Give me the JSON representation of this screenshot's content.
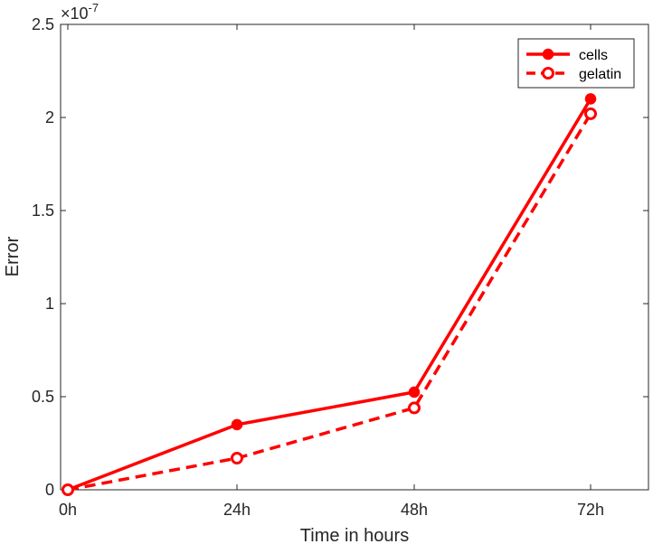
{
  "chart_data": {
    "type": "line",
    "x": [
      "0h",
      "24h",
      "48h",
      "72h"
    ],
    "xlabel": "Time in hours",
    "ylabel": "Error",
    "exponent_label": "×10",
    "exponent_power": "-7",
    "yticks": [
      "0",
      "0.5",
      "1",
      "1.5",
      "2",
      "2.5"
    ],
    "ylim": [
      0,
      2.5
    ],
    "grid": false,
    "legend_position": "top-right",
    "series": [
      {
        "name": "cells",
        "values": [
          0,
          0.35,
          0.525,
          2.1
        ],
        "color": "#ff0000",
        "style": "solid",
        "marker": "filled-circle"
      },
      {
        "name": "gelatin",
        "values": [
          0,
          0.17,
          0.44,
          2.02
        ],
        "color": "#ff0000",
        "style": "dashed",
        "marker": "open-circle"
      }
    ]
  }
}
